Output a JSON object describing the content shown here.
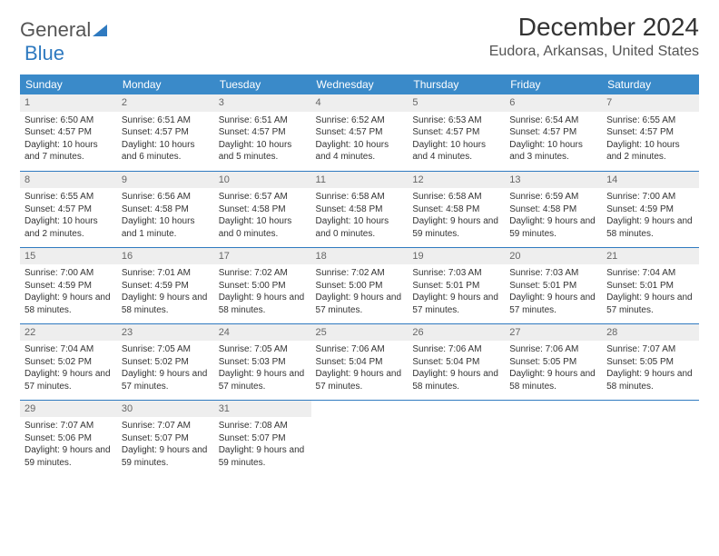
{
  "brand": {
    "part1": "General",
    "part2": "Blue"
  },
  "title": "December 2024",
  "location": "Eudora, Arkansas, United States",
  "header_bg": "#3a8ac0",
  "weekdays": [
    "Sunday",
    "Monday",
    "Tuesday",
    "Wednesday",
    "Thursday",
    "Friday",
    "Saturday"
  ],
  "labels": {
    "sunrise": "Sunrise:",
    "sunset": "Sunset:",
    "daylight": "Daylight:"
  },
  "rows": [
    [
      {
        "n": 1,
        "sr": "6:50 AM",
        "ss": "4:57 PM",
        "dl": "10 hours and 7 minutes."
      },
      {
        "n": 2,
        "sr": "6:51 AM",
        "ss": "4:57 PM",
        "dl": "10 hours and 6 minutes."
      },
      {
        "n": 3,
        "sr": "6:51 AM",
        "ss": "4:57 PM",
        "dl": "10 hours and 5 minutes."
      },
      {
        "n": 4,
        "sr": "6:52 AM",
        "ss": "4:57 PM",
        "dl": "10 hours and 4 minutes."
      },
      {
        "n": 5,
        "sr": "6:53 AM",
        "ss": "4:57 PM",
        "dl": "10 hours and 4 minutes."
      },
      {
        "n": 6,
        "sr": "6:54 AM",
        "ss": "4:57 PM",
        "dl": "10 hours and 3 minutes."
      },
      {
        "n": 7,
        "sr": "6:55 AM",
        "ss": "4:57 PM",
        "dl": "10 hours and 2 minutes."
      }
    ],
    [
      {
        "n": 8,
        "sr": "6:55 AM",
        "ss": "4:57 PM",
        "dl": "10 hours and 2 minutes."
      },
      {
        "n": 9,
        "sr": "6:56 AM",
        "ss": "4:58 PM",
        "dl": "10 hours and 1 minute."
      },
      {
        "n": 10,
        "sr": "6:57 AM",
        "ss": "4:58 PM",
        "dl": "10 hours and 0 minutes."
      },
      {
        "n": 11,
        "sr": "6:58 AM",
        "ss": "4:58 PM",
        "dl": "10 hours and 0 minutes."
      },
      {
        "n": 12,
        "sr": "6:58 AM",
        "ss": "4:58 PM",
        "dl": "9 hours and 59 minutes."
      },
      {
        "n": 13,
        "sr": "6:59 AM",
        "ss": "4:58 PM",
        "dl": "9 hours and 59 minutes."
      },
      {
        "n": 14,
        "sr": "7:00 AM",
        "ss": "4:59 PM",
        "dl": "9 hours and 58 minutes."
      }
    ],
    [
      {
        "n": 15,
        "sr": "7:00 AM",
        "ss": "4:59 PM",
        "dl": "9 hours and 58 minutes."
      },
      {
        "n": 16,
        "sr": "7:01 AM",
        "ss": "4:59 PM",
        "dl": "9 hours and 58 minutes."
      },
      {
        "n": 17,
        "sr": "7:02 AM",
        "ss": "5:00 PM",
        "dl": "9 hours and 58 minutes."
      },
      {
        "n": 18,
        "sr": "7:02 AM",
        "ss": "5:00 PM",
        "dl": "9 hours and 57 minutes."
      },
      {
        "n": 19,
        "sr": "7:03 AM",
        "ss": "5:01 PM",
        "dl": "9 hours and 57 minutes."
      },
      {
        "n": 20,
        "sr": "7:03 AM",
        "ss": "5:01 PM",
        "dl": "9 hours and 57 minutes."
      },
      {
        "n": 21,
        "sr": "7:04 AM",
        "ss": "5:01 PM",
        "dl": "9 hours and 57 minutes."
      }
    ],
    [
      {
        "n": 22,
        "sr": "7:04 AM",
        "ss": "5:02 PM",
        "dl": "9 hours and 57 minutes."
      },
      {
        "n": 23,
        "sr": "7:05 AM",
        "ss": "5:02 PM",
        "dl": "9 hours and 57 minutes."
      },
      {
        "n": 24,
        "sr": "7:05 AM",
        "ss": "5:03 PM",
        "dl": "9 hours and 57 minutes."
      },
      {
        "n": 25,
        "sr": "7:06 AM",
        "ss": "5:04 PM",
        "dl": "9 hours and 57 minutes."
      },
      {
        "n": 26,
        "sr": "7:06 AM",
        "ss": "5:04 PM",
        "dl": "9 hours and 58 minutes."
      },
      {
        "n": 27,
        "sr": "7:06 AM",
        "ss": "5:05 PM",
        "dl": "9 hours and 58 minutes."
      },
      {
        "n": 28,
        "sr": "7:07 AM",
        "ss": "5:05 PM",
        "dl": "9 hours and 58 minutes."
      }
    ],
    [
      {
        "n": 29,
        "sr": "7:07 AM",
        "ss": "5:06 PM",
        "dl": "9 hours and 59 minutes."
      },
      {
        "n": 30,
        "sr": "7:07 AM",
        "ss": "5:07 PM",
        "dl": "9 hours and 59 minutes."
      },
      {
        "n": 31,
        "sr": "7:08 AM",
        "ss": "5:07 PM",
        "dl": "9 hours and 59 minutes."
      },
      null,
      null,
      null,
      null
    ]
  ]
}
